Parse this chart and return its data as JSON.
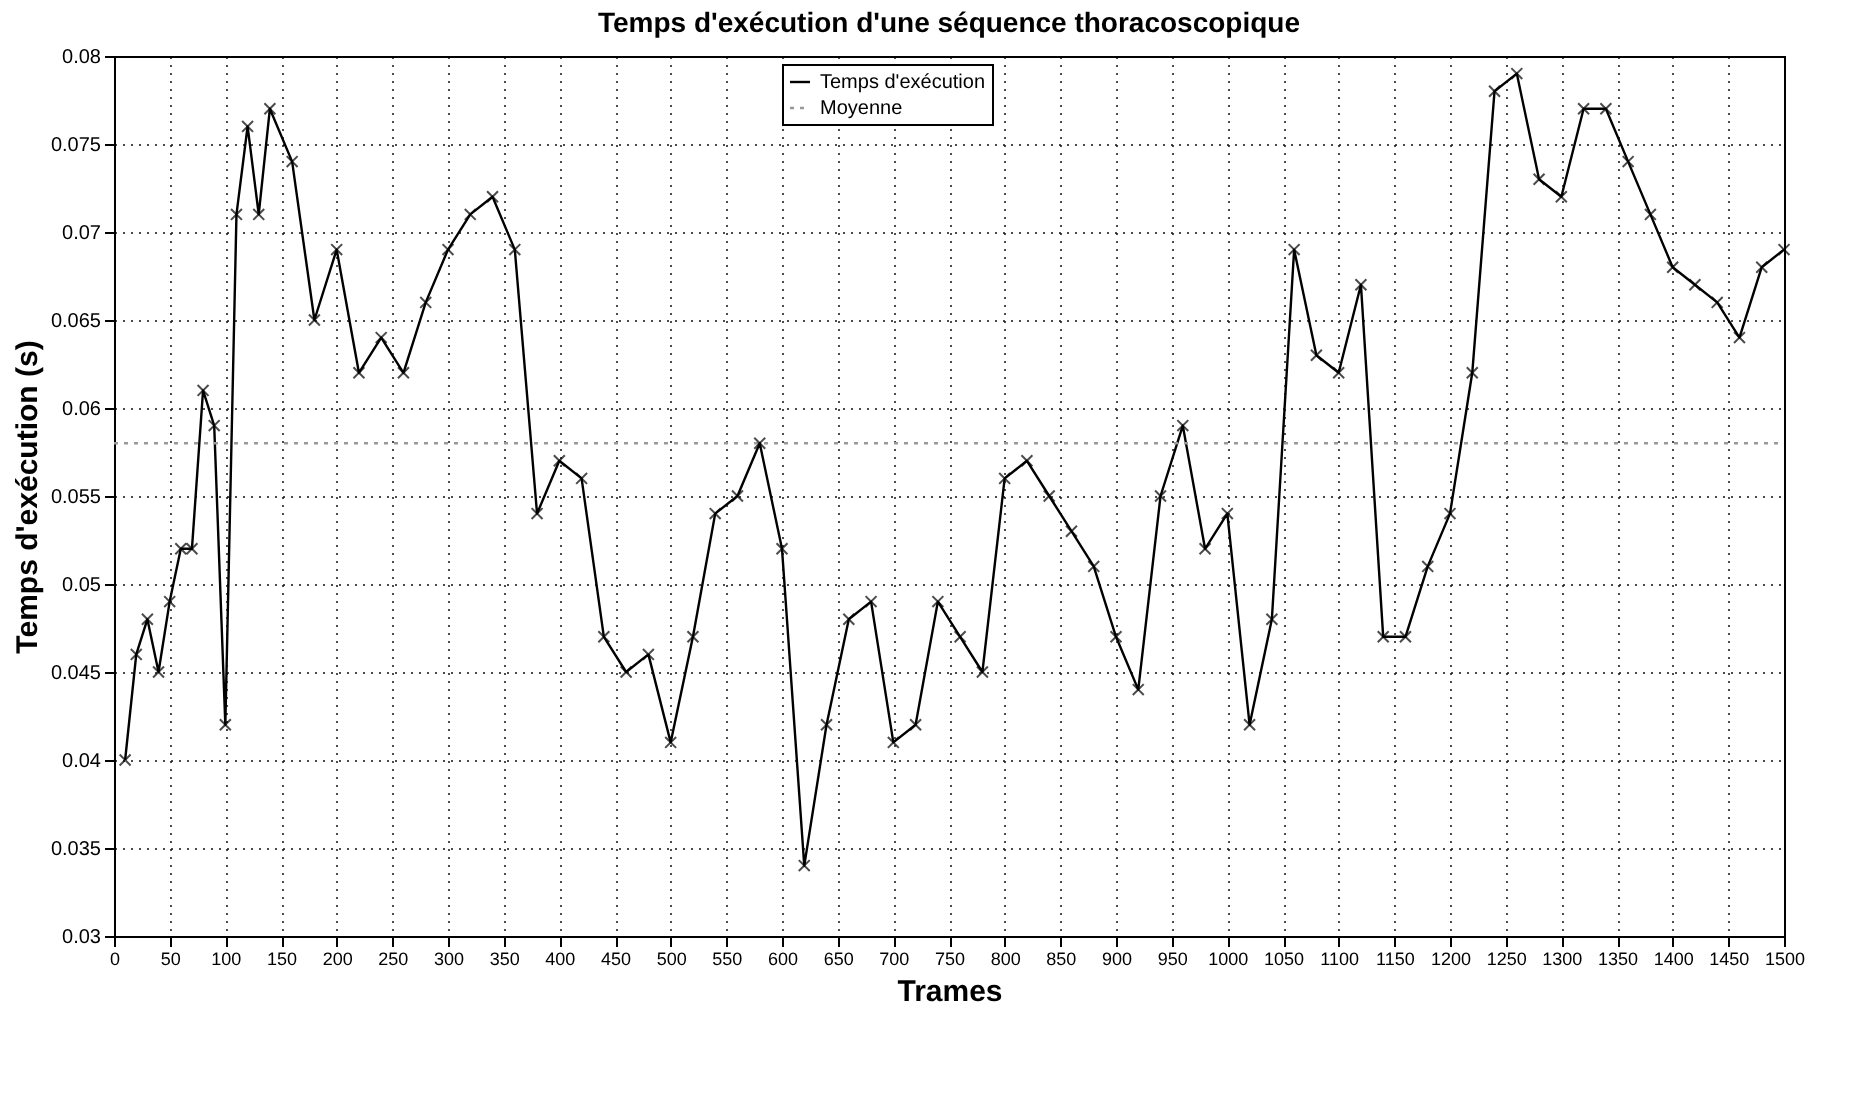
{
  "chart_data": {
    "type": "line",
    "title": "Temps d'exécution d'une séquence thoracoscopique",
    "xlabel": "Trames",
    "ylabel": "Temps d'exécution (s)",
    "series": [
      {
        "name": "Temps d'exécution",
        "color": "#000000",
        "marker": "cross",
        "line_style": "solid",
        "x": [
          10,
          20,
          30,
          40,
          50,
          60,
          70,
          80,
          90,
          100,
          110,
          120,
          130,
          140,
          160,
          180,
          200,
          220,
          240,
          260,
          280,
          300,
          320,
          340,
          360,
          380,
          400,
          420,
          440,
          460,
          480,
          500,
          520,
          540,
          560,
          580,
          600,
          620,
          640,
          660,
          680,
          700,
          720,
          740,
          760,
          780,
          800,
          820,
          840,
          860,
          880,
          900,
          920,
          940,
          960,
          980,
          1000,
          1020,
          1040,
          1060,
          1080,
          1100,
          1120,
          1140,
          1160,
          1180,
          1200,
          1220,
          1240,
          1260,
          1280,
          1300,
          1320,
          1340,
          1360,
          1380,
          1400,
          1420,
          1440,
          1460,
          1480,
          1500
        ],
        "values": [
          0.04,
          0.046,
          0.048,
          0.045,
          0.049,
          0.052,
          0.052,
          0.061,
          0.059,
          0.042,
          0.071,
          0.076,
          0.071,
          0.077,
          0.074,
          0.065,
          0.069,
          0.062,
          0.064,
          0.062,
          0.066,
          0.069,
          0.071,
          0.072,
          0.069,
          0.054,
          0.057,
          0.056,
          0.047,
          0.045,
          0.046,
          0.041,
          0.047,
          0.054,
          0.055,
          0.058,
          0.052,
          0.034,
          0.042,
          0.048,
          0.049,
          0.041,
          0.042,
          0.049,
          0.047,
          0.045,
          0.056,
          0.057,
          0.055,
          0.053,
          0.051,
          0.047,
          0.044,
          0.055,
          0.059,
          0.052,
          0.054,
          0.042,
          0.048,
          0.069,
          0.063,
          0.062,
          0.067,
          0.047,
          0.047,
          0.051,
          0.054,
          0.062,
          0.078,
          0.079,
          0.073,
          0.072,
          0.077,
          0.077,
          0.074,
          0.071,
          0.068,
          0.067,
          0.066,
          0.064,
          0.068,
          0.069
        ]
      },
      {
        "name": "Moyenne",
        "color": "#999999",
        "marker": "none",
        "line_style": "dotted",
        "x": [
          0,
          1500
        ],
        "values": [
          0.058,
          0.058
        ]
      }
    ],
    "xlim": [
      0,
      1500
    ],
    "xticks": [
      0,
      50,
      100,
      150,
      200,
      250,
      300,
      350,
      400,
      450,
      500,
      550,
      600,
      650,
      700,
      750,
      800,
      850,
      900,
      950,
      1000,
      1050,
      1100,
      1150,
      1200,
      1250,
      1300,
      1350,
      1400,
      1450,
      1500
    ],
    "ylim": [
      0.03,
      0.08
    ],
    "yticks": [
      0.03,
      0.035,
      0.04,
      0.045,
      0.05,
      0.055,
      0.06,
      0.065,
      0.07,
      0.075,
      0.08
    ],
    "grid": true,
    "legend": "top"
  }
}
